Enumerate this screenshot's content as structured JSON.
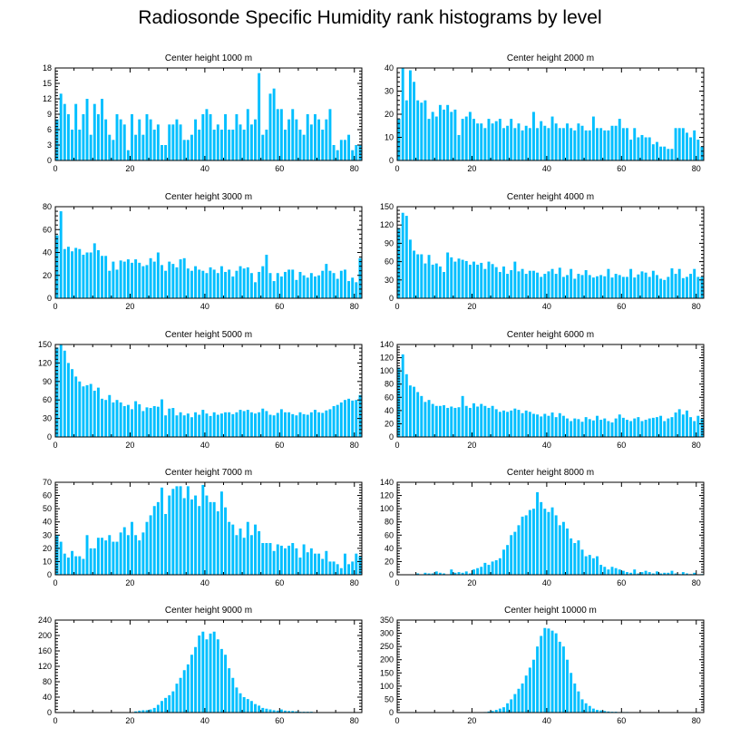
{
  "title": "Radiosonde Specific Humidity rank histograms by level",
  "bar_color": "#00bfff",
  "chart_data": [
    {
      "type": "bar",
      "title": "Center height 1000 m",
      "xlim": [
        0,
        82
      ],
      "xticks": [
        0,
        20,
        40,
        60,
        80
      ],
      "ylim": [
        0,
        18
      ],
      "yticks": [
        0,
        3,
        6,
        9,
        12,
        15,
        18
      ],
      "values": [
        8,
        13,
        11,
        9,
        6,
        11,
        6,
        9,
        12,
        5,
        11,
        9,
        12,
        8,
        5,
        4,
        9,
        8,
        7,
        2,
        9,
        5,
        8,
        5,
        9,
        8,
        6,
        7,
        3,
        3,
        7,
        7,
        8,
        7,
        4,
        4,
        5,
        8,
        6,
        9,
        10,
        9,
        6,
        7,
        6,
        9,
        6,
        6,
        9,
        7,
        6,
        10,
        7,
        8,
        17,
        5,
        6,
        13,
        14,
        10,
        10,
        6,
        8,
        10,
        8,
        6,
        5,
        9,
        7,
        9,
        8,
        6,
        8,
        10,
        3,
        2,
        4,
        4,
        5,
        2,
        3,
        3
      ]
    },
    {
      "type": "bar",
      "title": "Center height 2000 m",
      "xlim": [
        0,
        82
      ],
      "xticks": [
        0,
        20,
        40,
        60,
        80
      ],
      "ylim": [
        0,
        40
      ],
      "yticks": [
        0,
        10,
        20,
        30,
        40
      ],
      "values": [
        18,
        40,
        26,
        39,
        34,
        26,
        25,
        26,
        18,
        21,
        19,
        24,
        22,
        24,
        21,
        22,
        11,
        18,
        19,
        21,
        18,
        16,
        16,
        14,
        18,
        16,
        17,
        18,
        14,
        15,
        18,
        14,
        16,
        13,
        15,
        14,
        21,
        14,
        17,
        15,
        14,
        19,
        16,
        14,
        14,
        16,
        14,
        13,
        16,
        15,
        13,
        13,
        19,
        14,
        14,
        13,
        13,
        15,
        15,
        18,
        14,
        14,
        9,
        14,
        10,
        11,
        10,
        10,
        7,
        8,
        6,
        6,
        5,
        5,
        14,
        14,
        14,
        12,
        10,
        13,
        9,
        6
      ]
    },
    {
      "type": "bar",
      "title": "Center height 3000 m",
      "xlim": [
        0,
        82
      ],
      "xticks": [
        0,
        20,
        40,
        60,
        80
      ],
      "ylim": [
        0,
        80
      ],
      "yticks": [
        0,
        20,
        40,
        60,
        80
      ],
      "values": [
        55,
        76,
        43,
        45,
        41,
        44,
        43,
        38,
        40,
        40,
        48,
        42,
        37,
        37,
        24,
        32,
        25,
        33,
        32,
        34,
        31,
        34,
        31,
        28,
        29,
        35,
        32,
        40,
        29,
        24,
        32,
        30,
        27,
        34,
        35,
        26,
        24,
        28,
        25,
        24,
        22,
        27,
        25,
        22,
        28,
        23,
        25,
        19,
        24,
        28,
        26,
        27,
        22,
        14,
        23,
        28,
        38,
        22,
        15,
        22,
        19,
        23,
        25,
        25,
        16,
        23,
        20,
        18,
        22,
        19,
        20,
        24,
        30,
        24,
        22,
        17,
        24,
        25,
        15,
        18,
        14,
        35
      ]
    },
    {
      "type": "bar",
      "title": "Center height 4000 m",
      "xlim": [
        0,
        82
      ],
      "xticks": [
        0,
        20,
        40,
        60,
        80
      ],
      "ylim": [
        0,
        150
      ],
      "yticks": [
        0,
        30,
        60,
        90,
        120,
        150
      ],
      "values": [
        115,
        140,
        135,
        96,
        78,
        72,
        72,
        57,
        71,
        55,
        57,
        52,
        43,
        75,
        67,
        60,
        65,
        63,
        61,
        55,
        60,
        55,
        58,
        48,
        60,
        56,
        51,
        43,
        52,
        40,
        46,
        60,
        44,
        48,
        40,
        45,
        45,
        42,
        35,
        40,
        44,
        48,
        40,
        50,
        35,
        38,
        48,
        32,
        40,
        38,
        46,
        38,
        34,
        36,
        38,
        36,
        48,
        34,
        40,
        38,
        35,
        35,
        48,
        34,
        39,
        44,
        42,
        35,
        45,
        38,
        32,
        30,
        35,
        49,
        40,
        48,
        33,
        35,
        40,
        48,
        35,
        35
      ]
    },
    {
      "type": "bar",
      "title": "Center height 5000 m",
      "xlim": [
        0,
        82
      ],
      "xticks": [
        0,
        20,
        40,
        60,
        80
      ],
      "ylim": [
        0,
        150
      ],
      "yticks": [
        0,
        30,
        60,
        90,
        120,
        150
      ],
      "values": [
        145,
        150,
        140,
        120,
        110,
        98,
        90,
        82,
        84,
        86,
        75,
        80,
        62,
        60,
        68,
        56,
        60,
        56,
        50,
        52,
        45,
        58,
        53,
        42,
        48,
        47,
        50,
        49,
        61,
        35,
        46,
        47,
        35,
        40,
        35,
        38,
        32,
        40,
        36,
        44,
        38,
        34,
        40,
        36,
        38,
        40,
        40,
        37,
        40,
        44,
        42,
        44,
        40,
        38,
        40,
        46,
        42,
        36,
        35,
        39,
        45,
        40,
        40,
        37,
        35,
        40,
        37,
        36,
        40,
        44,
        40,
        39,
        43,
        45,
        50,
        52,
        56,
        60,
        62,
        59,
        60,
        68
      ]
    },
    {
      "type": "bar",
      "title": "Center height 6000 m",
      "xlim": [
        0,
        82
      ],
      "xticks": [
        0,
        20,
        40,
        60,
        80
      ],
      "ylim": [
        0,
        140
      ],
      "yticks": [
        0,
        20,
        40,
        60,
        80,
        100,
        120,
        140
      ],
      "values": [
        105,
        125,
        95,
        78,
        76,
        68,
        62,
        53,
        56,
        50,
        47,
        47,
        48,
        44,
        46,
        44,
        45,
        62,
        47,
        44,
        51,
        46,
        50,
        47,
        44,
        47,
        42,
        38,
        40,
        38,
        40,
        43,
        41,
        36,
        40,
        38,
        35,
        34,
        31,
        35,
        32,
        37,
        30,
        36,
        32,
        28,
        24,
        28,
        27,
        23,
        30,
        27,
        25,
        32,
        26,
        28,
        24,
        22,
        28,
        34,
        29,
        26,
        24,
        28,
        30,
        24,
        26,
        28,
        29,
        30,
        32,
        24,
        28,
        30,
        37,
        42,
        34,
        40,
        30,
        24,
        32,
        28
      ]
    },
    {
      "type": "bar",
      "title": "Center height 7000 m",
      "xlim": [
        0,
        82
      ],
      "xticks": [
        0,
        20,
        40,
        60,
        80
      ],
      "ylim": [
        0,
        70
      ],
      "yticks": [
        0,
        10,
        20,
        30,
        40,
        50,
        60,
        70
      ],
      "values": [
        30,
        25,
        16,
        13,
        18,
        14,
        14,
        12,
        30,
        20,
        20,
        28,
        28,
        26,
        30,
        25,
        25,
        32,
        36,
        30,
        40,
        30,
        26,
        32,
        40,
        45,
        52,
        55,
        66,
        46,
        60,
        65,
        67,
        67,
        58,
        67,
        57,
        60,
        52,
        68,
        60,
        55,
        55,
        48,
        63,
        51,
        40,
        38,
        30,
        35,
        28,
        40,
        30,
        38,
        33,
        24,
        24,
        24,
        18,
        23,
        22,
        20,
        22,
        24,
        20,
        13,
        23,
        17,
        20,
        16,
        16,
        12,
        18,
        10,
        10,
        8,
        5,
        16,
        8,
        10,
        16,
        14
      ]
    },
    {
      "type": "bar",
      "title": "Center height 8000 m",
      "xlim": [
        0,
        82
      ],
      "xticks": [
        0,
        20,
        40,
        60,
        80
      ],
      "ylim": [
        0,
        140
      ],
      "yticks": [
        0,
        20,
        40,
        60,
        80,
        100,
        120,
        140
      ],
      "values": [
        0,
        0,
        0,
        0,
        0,
        2,
        0,
        3,
        2,
        2,
        5,
        3,
        2,
        0,
        8,
        3,
        4,
        3,
        5,
        2,
        8,
        10,
        12,
        18,
        15,
        20,
        22,
        25,
        38,
        45,
        60,
        65,
        75,
        88,
        90,
        98,
        100,
        125,
        110,
        100,
        95,
        102,
        90,
        75,
        80,
        70,
        55,
        48,
        52,
        38,
        28,
        30,
        25,
        28,
        15,
        12,
        8,
        12,
        10,
        8,
        6,
        4,
        3,
        8,
        2,
        4,
        6,
        4,
        2,
        5,
        2,
        3,
        3,
        6,
        2,
        1,
        4,
        2,
        1,
        3,
        0,
        1
      ]
    },
    {
      "type": "bar",
      "title": "Center height 9000 m",
      "xlim": [
        0,
        82
      ],
      "xticks": [
        0,
        20,
        40,
        60,
        80
      ],
      "ylim": [
        0,
        240
      ],
      "yticks": [
        0,
        40,
        80,
        120,
        160,
        200,
        240
      ],
      "values": [
        0,
        0,
        0,
        0,
        0,
        0,
        0,
        0,
        0,
        0,
        0,
        0,
        0,
        0,
        0,
        0,
        0,
        0,
        0,
        0,
        0,
        3,
        5,
        6,
        6,
        8,
        12,
        20,
        30,
        38,
        45,
        55,
        75,
        90,
        110,
        125,
        150,
        170,
        200,
        210,
        190,
        205,
        210,
        190,
        165,
        150,
        115,
        90,
        65,
        50,
        40,
        35,
        30,
        22,
        18,
        12,
        10,
        8,
        6,
        5,
        8,
        5,
        4,
        4,
        3,
        2,
        2,
        2,
        2,
        1,
        1,
        1,
        1,
        1,
        0,
        0,
        0,
        0,
        0,
        0,
        0,
        0
      ]
    },
    {
      "type": "bar",
      "title": "Center height 10000 m",
      "xlim": [
        0,
        82
      ],
      "xticks": [
        0,
        20,
        40,
        60,
        80
      ],
      "ylim": [
        0,
        350
      ],
      "yticks": [
        0,
        50,
        100,
        150,
        200,
        250,
        300,
        350
      ],
      "values": [
        0,
        0,
        0,
        0,
        0,
        0,
        0,
        0,
        0,
        0,
        0,
        0,
        0,
        0,
        0,
        0,
        0,
        0,
        0,
        0,
        0,
        0,
        0,
        2,
        4,
        6,
        10,
        15,
        20,
        35,
        50,
        70,
        90,
        110,
        140,
        170,
        200,
        250,
        290,
        320,
        318,
        310,
        300,
        268,
        250,
        200,
        150,
        110,
        80,
        50,
        35,
        25,
        15,
        10,
        8,
        6,
        4,
        3,
        3,
        2,
        2,
        2,
        1,
        1,
        1,
        1,
        1,
        0,
        0,
        0,
        0,
        0,
        0,
        0,
        0,
        0,
        0,
        0,
        0,
        0,
        0,
        0
      ]
    }
  ]
}
